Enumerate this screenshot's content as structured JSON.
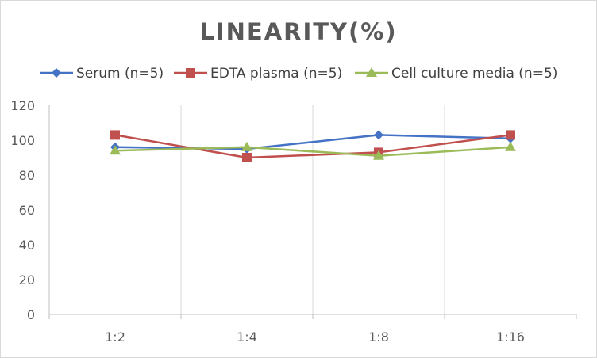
{
  "chart_data": {
    "type": "line",
    "title": "LINEARITY(%)",
    "categories": [
      "1:2",
      "1:4",
      "1:8",
      "1:16"
    ],
    "ylim": [
      0,
      120
    ],
    "yticks": [
      0,
      20,
      40,
      60,
      80,
      100,
      120
    ],
    "grid": "vertical",
    "legend": "top",
    "series": [
      {
        "name": "Serum (n=5)",
        "values": [
          96,
          95,
          103,
          101
        ],
        "color": "#4472c4",
        "marker": "diamond"
      },
      {
        "name": "EDTA plasma (n=5)",
        "values": [
          103,
          90,
          93,
          103
        ],
        "color": "#c0504d",
        "marker": "square"
      },
      {
        "name": "Cell culture media (n=5)",
        "values": [
          94,
          96,
          91,
          96
        ],
        "color": "#9bbb59",
        "marker": "triangle"
      }
    ]
  }
}
